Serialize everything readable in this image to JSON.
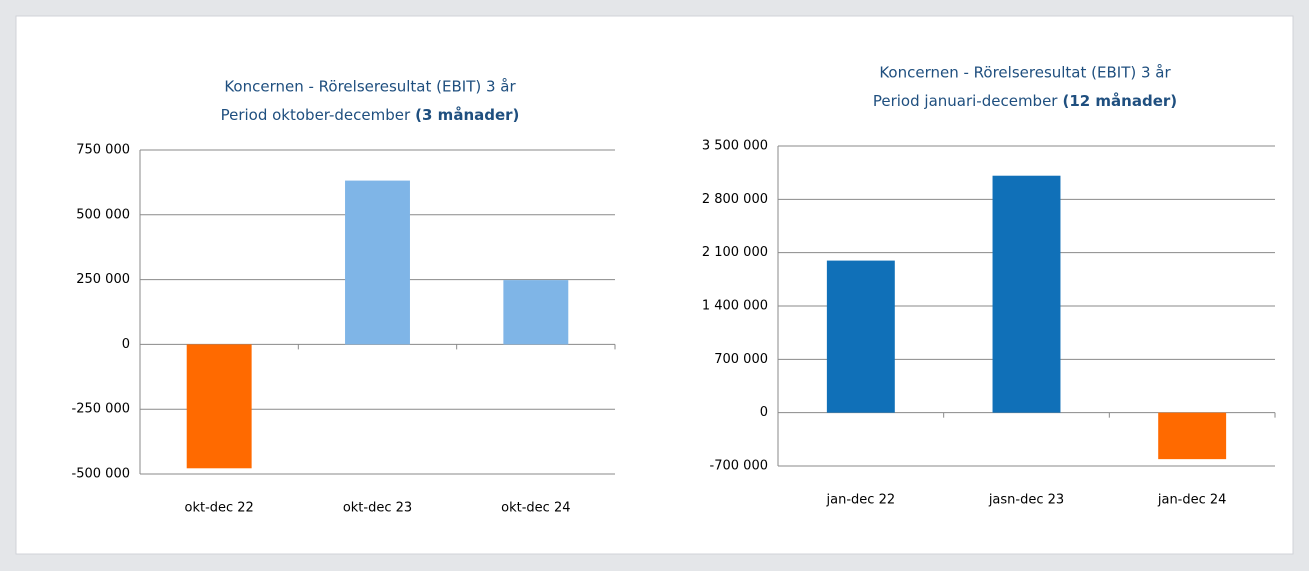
{
  "chart_data": [
    {
      "type": "bar",
      "title": "Koncernen - Rörelseresultat (EBIT) 3 år",
      "subtitle": "Period oktober-december",
      "subtitle_note": "(3 månader)",
      "categories": [
        "okt-dec 22",
        "okt-dec 23",
        "okt-dec 24"
      ],
      "values": [
        -478000,
        632000,
        248000
      ],
      "colors": [
        "#ff6a00",
        "#7fb5e7",
        "#7fb5e7"
      ],
      "ylim": [
        -500000,
        750000
      ],
      "yticks": [
        {
          "value": -500000,
          "label": "-500 000"
        },
        {
          "value": -250000,
          "label": "-250 000"
        },
        0,
        {
          "value": 250000,
          "label": "250 000"
        },
        {
          "value": 500000,
          "label": "500 000"
        },
        {
          "value": 750000,
          "label": "750 000"
        }
      ],
      "grid": true
    },
    {
      "type": "bar",
      "title": "Koncernen - Rörelseresultat (EBIT) 3 år",
      "subtitle": "Period januari-december",
      "subtitle_note": "(12 månader)",
      "categories": [
        "jan-dec 22",
        "jasn-dec 23",
        "jan-dec 24"
      ],
      "values": [
        1996000,
        3110000,
        -610000
      ],
      "colors": [
        "#1070b8",
        "#1070b8",
        "#ff6a00"
      ],
      "ylim": [
        -700000,
        3500000
      ],
      "yticks": [
        {
          "value": -700000,
          "label": "-700 000"
        },
        0,
        {
          "value": 700000,
          "label": "700 000"
        },
        {
          "value": 1400000,
          "label": "1 400 000"
        },
        {
          "value": 2100000,
          "label": "2 100 000"
        },
        {
          "value": 2800000,
          "label": "2 800 000"
        },
        {
          "value": 3500000,
          "label": "3 500 000"
        }
      ],
      "grid": true
    }
  ]
}
